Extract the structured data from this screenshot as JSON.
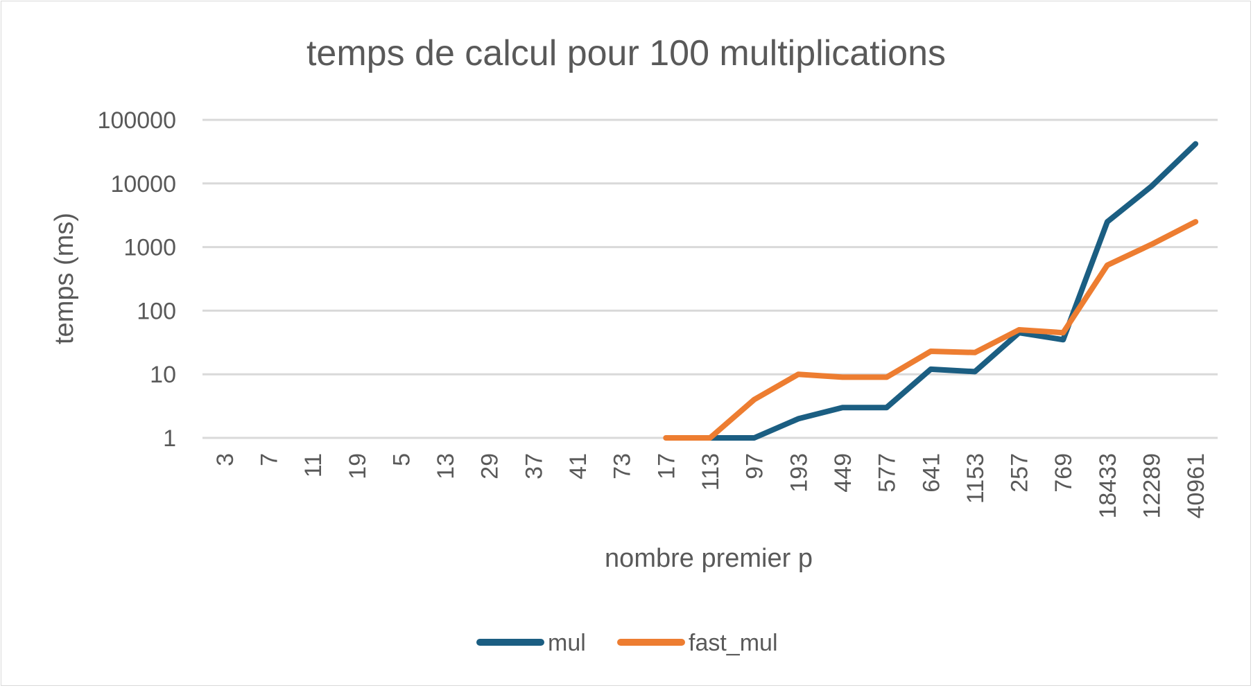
{
  "chart_data": {
    "type": "line",
    "title": "temps de calcul pour 100 multiplications",
    "xlabel": "nombre premier p",
    "ylabel": "temps (ms)",
    "y_scale": "log",
    "ylim": [
      1,
      100000
    ],
    "y_ticks": [
      "1",
      "10",
      "100",
      "1000",
      "10000",
      "100000"
    ],
    "grid": true,
    "legend_position": "bottom",
    "categories": [
      "3",
      "7",
      "11",
      "19",
      "5",
      "13",
      "29",
      "37",
      "41",
      "73",
      "17",
      "113",
      "97",
      "193",
      "449",
      "577",
      "641",
      "1153",
      "257",
      "769",
      "18433",
      "12289",
      "40961"
    ],
    "series": [
      {
        "name": "mul",
        "color": "#1b5e82",
        "values": [
          null,
          null,
          null,
          null,
          null,
          null,
          null,
          null,
          null,
          null,
          null,
          1,
          1,
          2,
          3,
          3,
          12,
          11,
          45,
          35,
          2500,
          9000,
          42000
        ]
      },
      {
        "name": "fast_mul",
        "color": "#ed7d31",
        "values": [
          null,
          null,
          null,
          null,
          null,
          null,
          null,
          null,
          null,
          null,
          1,
          1,
          4,
          10,
          9,
          9,
          23,
          22,
          50,
          45,
          520,
          1100,
          2500
        ]
      }
    ]
  }
}
